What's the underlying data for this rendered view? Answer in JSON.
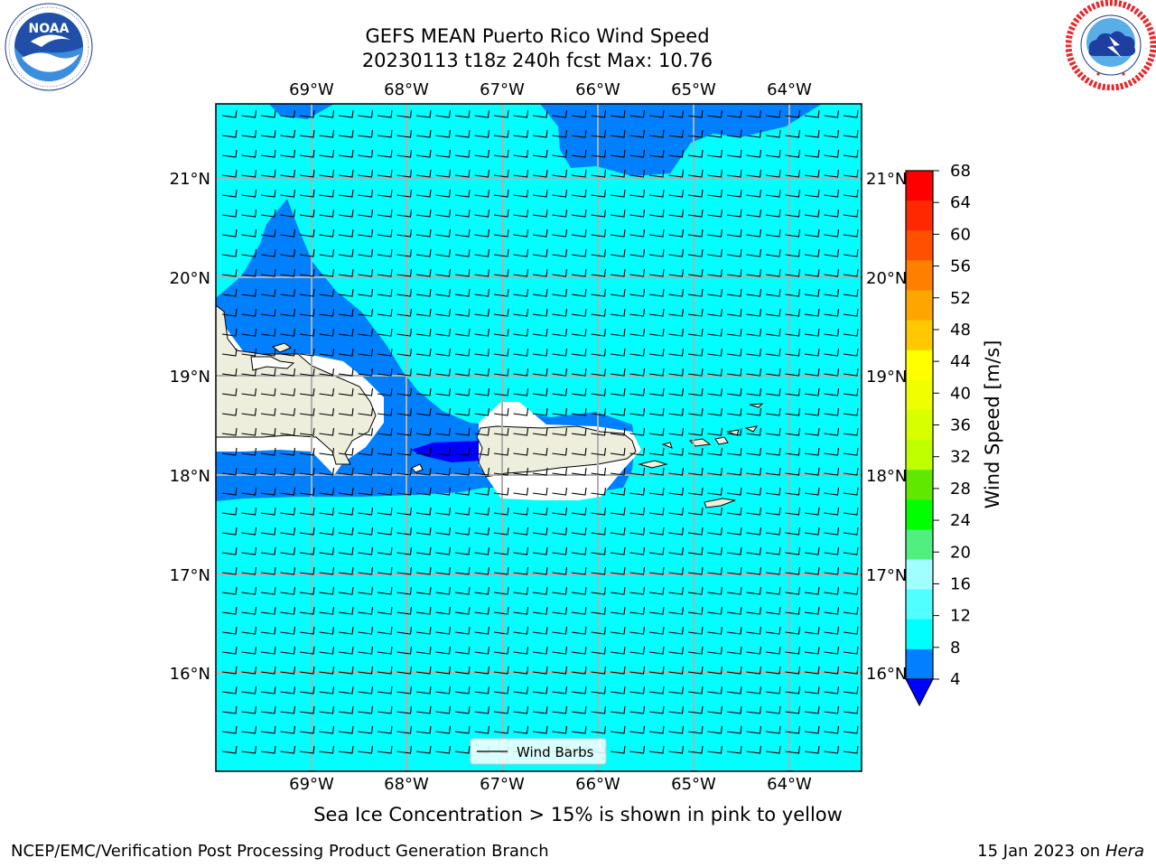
{
  "title": {
    "line1": "GEFS MEAN Puerto Rico Wind Speed",
    "line2": "20230113 t18z 240h fcst   Max: 10.76"
  },
  "logos": {
    "left": "NOAA",
    "left_ring": "NATIONAL OCEANIC AND ATMOSPHERIC ADMINISTRATION · U.S. DEPARTMENT OF COMMERCE",
    "right_ring": "NATIONAL WEATHER SERVICE"
  },
  "map": {
    "lon_labels": [
      "69°W",
      "68°W",
      "67°W",
      "66°W",
      "65°W",
      "64°W"
    ],
    "lat_labels": [
      "21°N",
      "20°N",
      "19°N",
      "18°N",
      "17°N",
      "16°N"
    ],
    "ocean_color": "#00ffff",
    "wind_band_color": "#0080ff",
    "calm_color": "#0000ff",
    "land_color": "#eeeedd",
    "legend_label": "Wind Barbs"
  },
  "colorbar": {
    "label": "Wind Speed [m/s]",
    "ticks": [
      "68",
      "64",
      "60",
      "56",
      "52",
      "48",
      "44",
      "40",
      "36",
      "32",
      "28",
      "24",
      "20",
      "16",
      "12",
      "8",
      "4"
    ],
    "colors_top_to_bottom": [
      "#ff0000",
      "#ff2800",
      "#ff5000",
      "#ff8000",
      "#ffa500",
      "#ffc800",
      "#ffff00",
      "#f0ff00",
      "#d7ff00",
      "#c0ff00",
      "#60e800",
      "#00ff00",
      "#50f080",
      "#a0ffff",
      "#50ffff",
      "#00ffff",
      "#0080ff"
    ],
    "extend_color": "#0000ff"
  },
  "caption": "Sea Ice Concentration > 15% is shown in pink to yellow",
  "footer": {
    "left": "NCEP/EMC/Verification Post Processing Product Generation Branch",
    "date": "15 Jan 2023 on ",
    "machine": "Hera"
  }
}
